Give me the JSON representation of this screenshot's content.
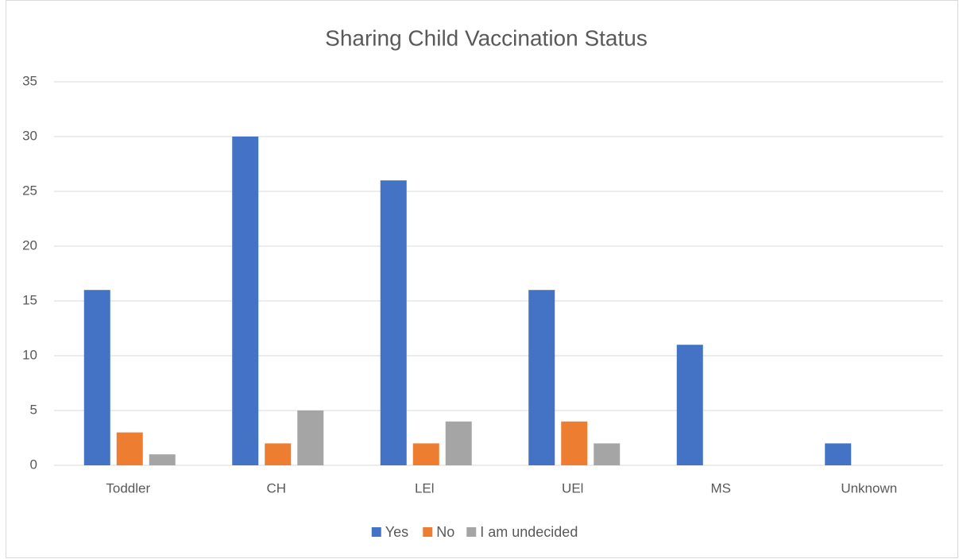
{
  "chart_data": {
    "type": "bar",
    "title": "Sharing Child Vaccination Status",
    "categories": [
      "Toddler",
      "CH",
      "LEl",
      "UEl",
      "MS",
      "Unknown"
    ],
    "series": [
      {
        "name": "Yes",
        "color": "#4472c4",
        "values": [
          16,
          30,
          26,
          16,
          11,
          2
        ]
      },
      {
        "name": "No",
        "color": "#ed7d31",
        "values": [
          3,
          2,
          2,
          4,
          0,
          0
        ]
      },
      {
        "name": "I am undecided",
        "color": "#a5a5a5",
        "values": [
          1,
          5,
          4,
          2,
          0,
          0
        ]
      }
    ],
    "ylim": [
      0,
      35
    ],
    "yticks": [
      0,
      5,
      10,
      15,
      20,
      25,
      30,
      35
    ],
    "grid": true,
    "legend": "bottom"
  }
}
